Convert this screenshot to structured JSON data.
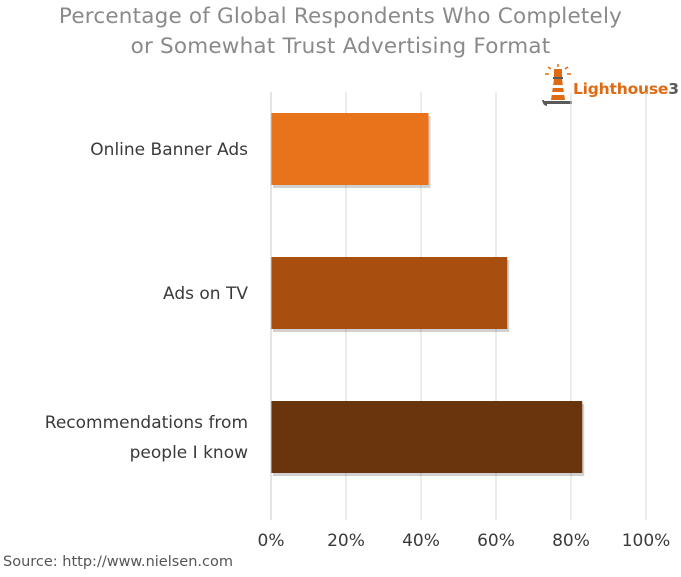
{
  "title_lines": [
    "Percentage of Global Respondents Who Completely",
    "or Somewhat Trust Advertising Format"
  ],
  "logo": {
    "text_part1": "Lighthouse",
    "text_part2": "3",
    "icon": "lighthouse-icon"
  },
  "source": "Source: http://www.nielsen.com",
  "colors": {
    "bar_1": "#E8731A",
    "bar_2": "#A84F0F",
    "bar_3": "#6A340D",
    "grid": "#d8d8d8",
    "title": "#8a8a8a"
  },
  "chart_data": {
    "type": "bar",
    "orientation": "horizontal",
    "title": "Percentage of Global Respondents Who Completely or Somewhat Trust Advertising Format",
    "categories": [
      [
        "Online Banner Ads"
      ],
      [
        "Ads on TV"
      ],
      [
        "Recommendations from",
        "people I know"
      ]
    ],
    "values": [
      42,
      63,
      83
    ],
    "unit": "%",
    "xlim": [
      0,
      100
    ],
    "x_ticks": [
      "0%",
      "20%",
      "40%",
      "60%",
      "80%",
      "100%"
    ],
    "grid": true,
    "legend": "none"
  }
}
